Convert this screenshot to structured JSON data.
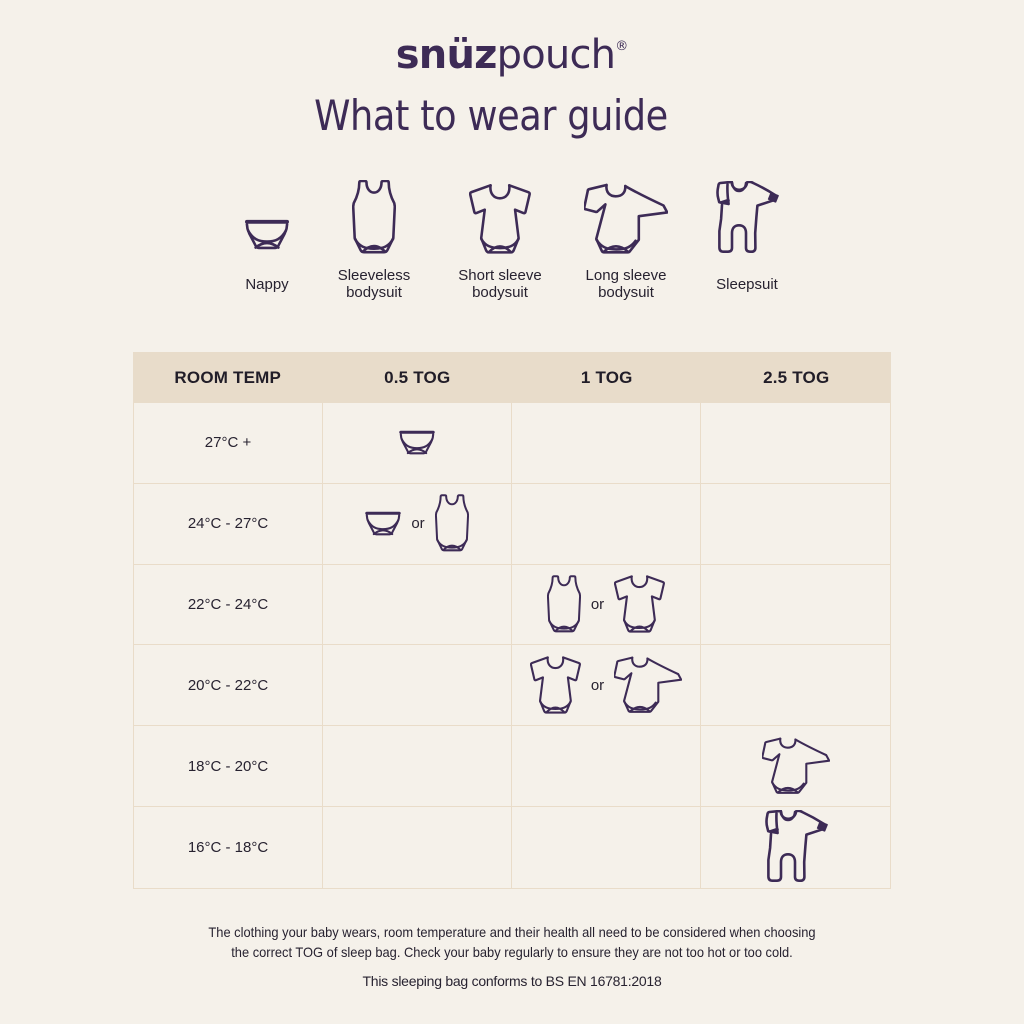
{
  "colors": {
    "bg": "#f5f1ea",
    "band": "#e8dcca",
    "line": "#e9dcc9",
    "purple": "#3d2b56",
    "dark": "#272230"
  },
  "header": {
    "brand_bold": "snüz",
    "brand_light": "pouch",
    "registered_mark": "®",
    "title": "What to wear guide"
  },
  "legend": {
    "items": [
      {
        "key": "nappy",
        "label": "Nappy"
      },
      {
        "key": "sleeveless-bodysuit",
        "label": "Sleeveless bodysuit"
      },
      {
        "key": "short-sleeve-bodysuit",
        "label": "Short sleeve bodysuit"
      },
      {
        "key": "long-sleeve-bodysuit",
        "label": "Long sleeve bodysuit"
      },
      {
        "key": "sleepsuit",
        "label": "Sleepsuit"
      }
    ]
  },
  "table": {
    "columns": [
      "ROOM TEMP",
      "0.5 TOG",
      "1 TOG",
      "2.5 TOG"
    ],
    "or_label": "or",
    "rows": [
      {
        "temp": "27°C +",
        "tog_column": "0.5 TOG",
        "items": [
          "nappy"
        ]
      },
      {
        "temp": "24°C - 27°C",
        "tog_column": "0.5 TOG",
        "items": [
          "nappy",
          "sleeveless-bodysuit"
        ]
      },
      {
        "temp": "22°C - 24°C",
        "tog_column": "1 TOG",
        "items": [
          "sleeveless-bodysuit",
          "short-sleeve-bodysuit"
        ]
      },
      {
        "temp": "20°C - 22°C",
        "tog_column": "1 TOG",
        "items": [
          "short-sleeve-bodysuit",
          "long-sleeve-bodysuit"
        ]
      },
      {
        "temp": "18°C - 20°C",
        "tog_column": "2.5 TOG",
        "items": [
          "long-sleeve-bodysuit"
        ]
      },
      {
        "temp": "16°C - 18°C",
        "tog_column": "2.5 TOG",
        "items": [
          "sleepsuit"
        ]
      }
    ]
  },
  "footer": {
    "note_line1": "The clothing your baby wears, room temperature and their health all need to be considered when choosing",
    "note_line2": "the correct TOG of sleep bag. Check your baby regularly to ensure they are not too hot or too cold.",
    "conformance": "This sleeping bag conforms to BS EN 16781:2018"
  }
}
